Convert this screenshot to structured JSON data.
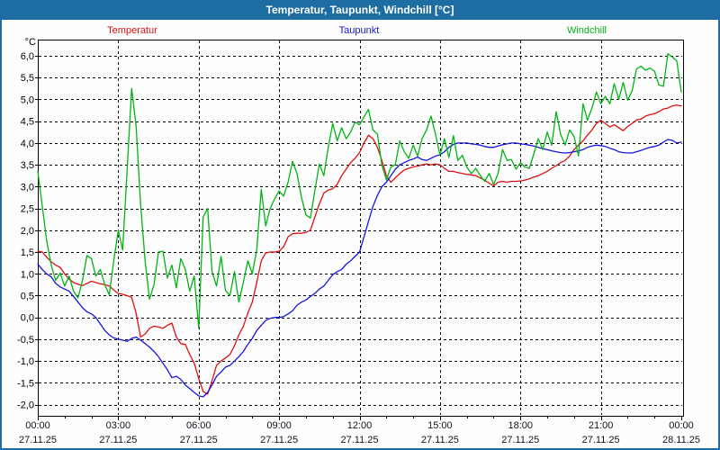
{
  "window": {
    "title": "Temperatur, Taupunkt, Windchill [°C]"
  },
  "chart_data": {
    "type": "line",
    "title": "Temperatur, Taupunkt, Windchill [°C]",
    "unit_label": "°C",
    "grid": "dashed-black",
    "legend_position": "top",
    "x_axis": {
      "range_hours": [
        0,
        24
      ],
      "major_tick_hours": 3,
      "minor_tick_hours": 1,
      "ticks": [
        {
          "hour": 0,
          "time": "00:00",
          "date": "27.11.25"
        },
        {
          "hour": 3,
          "time": "03:00",
          "date": "27.11.25"
        },
        {
          "hour": 6,
          "time": "06:00",
          "date": "27.11.25"
        },
        {
          "hour": 9,
          "time": "09:00",
          "date": "27.11.25"
        },
        {
          "hour": 12,
          "time": "12:00",
          "date": "27.11.25"
        },
        {
          "hour": 15,
          "time": "15:00",
          "date": "27.11.25"
        },
        {
          "hour": 18,
          "time": "18:00",
          "date": "27.11.25"
        },
        {
          "hour": 21,
          "time": "21:00",
          "date": "27.11.25"
        },
        {
          "hour": 24,
          "time": "00:00",
          "date": "28.11.25"
        }
      ]
    },
    "y_axis": {
      "min": -2.0,
      "max": 6.0,
      "step": 0.5,
      "tick_labels": [
        "6,0",
        "5,5",
        "5,0",
        "4,5",
        "4,0",
        "3,5",
        "3,0",
        "2,5",
        "2,0",
        "1,5",
        "1,0",
        "0,5",
        "0,0",
        "-0,5",
        "-1,0",
        "-1,5",
        "-2,0"
      ]
    },
    "sample_interval_minutes": 10,
    "series": [
      {
        "name": "Temperatur",
        "color": "#e01010",
        "values": [
          1.52,
          1.5,
          1.38,
          1.28,
          1.2,
          1.15,
          1.0,
          0.88,
          0.8,
          0.76,
          0.73,
          0.78,
          0.83,
          0.8,
          0.77,
          0.75,
          0.72,
          0.63,
          0.55,
          0.53,
          0.5,
          0.46,
          0.1,
          -0.45,
          -0.38,
          -0.25,
          -0.2,
          -0.22,
          -0.25,
          -0.18,
          -0.13,
          -0.45,
          -0.6,
          -0.62,
          -0.85,
          -1.05,
          -1.4,
          -1.7,
          -1.76,
          -1.45,
          -1.1,
          -1.0,
          -0.93,
          -0.85,
          -0.65,
          -0.4,
          -0.2,
          0.1,
          0.35,
          0.8,
          1.3,
          1.48,
          1.5,
          1.5,
          1.52,
          1.62,
          1.85,
          1.92,
          1.93,
          1.93,
          1.95,
          2.0,
          2.3,
          2.6,
          2.85,
          2.92,
          2.95,
          3.05,
          3.25,
          3.4,
          3.55,
          3.65,
          3.78,
          4.0,
          4.18,
          4.1,
          3.9,
          3.6,
          3.25,
          3.1,
          3.2,
          3.3,
          3.38,
          3.42,
          3.45,
          3.47,
          3.5,
          3.52,
          3.5,
          3.52,
          3.5,
          3.42,
          3.35,
          3.35,
          3.32,
          3.3,
          3.28,
          3.27,
          3.25,
          3.2,
          3.15,
          3.08,
          3.02,
          3.1,
          3.12,
          3.1,
          3.12,
          3.12,
          3.13,
          3.15,
          3.18,
          3.22,
          3.25,
          3.3,
          3.35,
          3.42,
          3.48,
          3.55,
          3.6,
          3.7,
          3.85,
          3.95,
          4.05,
          4.18,
          4.3,
          4.45,
          4.52,
          4.45,
          4.37,
          4.42,
          4.35,
          4.28,
          4.38,
          4.45,
          4.53,
          4.55,
          4.62,
          4.65,
          4.67,
          4.72,
          4.78,
          4.8,
          4.85,
          4.87,
          4.85
        ]
      },
      {
        "name": "Taupunkt",
        "color": "#1515dd",
        "values": [
          1.22,
          1.1,
          1.0,
          0.93,
          0.78,
          0.7,
          0.65,
          0.6,
          0.48,
          0.35,
          0.22,
          0.13,
          0.08,
          0.0,
          -0.15,
          -0.3,
          -0.4,
          -0.47,
          -0.5,
          -0.52,
          -0.55,
          -0.48,
          -0.45,
          -0.52,
          -0.6,
          -0.68,
          -0.78,
          -0.9,
          -1.05,
          -1.2,
          -1.38,
          -1.35,
          -1.42,
          -1.55,
          -1.63,
          -1.72,
          -1.8,
          -1.82,
          -1.72,
          -1.55,
          -1.35,
          -1.25,
          -1.14,
          -1.1,
          -1.0,
          -0.9,
          -0.78,
          -0.62,
          -0.48,
          -0.3,
          -0.18,
          -0.07,
          -0.02,
          0.0,
          0.0,
          0.02,
          0.08,
          0.15,
          0.28,
          0.35,
          0.4,
          0.48,
          0.55,
          0.65,
          0.72,
          0.85,
          0.98,
          1.05,
          1.1,
          1.22,
          1.3,
          1.4,
          1.5,
          1.85,
          2.2,
          2.55,
          2.8,
          3.0,
          3.1,
          3.25,
          3.4,
          3.5,
          3.55,
          3.6,
          3.63,
          3.68,
          3.62,
          3.6,
          3.65,
          3.7,
          3.73,
          3.8,
          3.9,
          3.97,
          4.0,
          4.0,
          4.0,
          3.98,
          3.97,
          3.95,
          3.92,
          3.9,
          3.9,
          3.93,
          3.96,
          3.98,
          4.0,
          4.0,
          3.98,
          3.97,
          3.95,
          3.93,
          3.9,
          3.87,
          3.85,
          3.82,
          3.8,
          3.78,
          3.77,
          3.78,
          3.8,
          3.82,
          3.85,
          3.9,
          3.93,
          3.95,
          3.94,
          3.92,
          3.88,
          3.85,
          3.8,
          3.78,
          3.77,
          3.77,
          3.8,
          3.83,
          3.87,
          3.9,
          3.92,
          3.95,
          4.02,
          4.08,
          4.06,
          4.0,
          4.02
        ]
      },
      {
        "name": "Windchill",
        "color": "#00b414",
        "values": [
          3.35,
          2.55,
          1.75,
          1.2,
          0.85,
          1.02,
          0.72,
          0.95,
          0.6,
          0.45,
          0.85,
          1.42,
          1.35,
          0.95,
          1.1,
          0.75,
          0.52,
          1.3,
          2.0,
          1.55,
          3.4,
          5.25,
          4.4,
          2.6,
          1.3,
          0.42,
          0.75,
          1.5,
          1.52,
          0.9,
          1.2,
          0.68,
          1.35,
          1.1,
          0.6,
          0.95,
          -0.25,
          2.3,
          2.5,
          1.05,
          0.72,
          1.4,
          0.62,
          0.5,
          1.05,
          0.35,
          0.8,
          1.3,
          1.0,
          1.55,
          2.94,
          2.1,
          2.5,
          2.72,
          2.9,
          2.78,
          3.1,
          3.58,
          3.3,
          2.75,
          2.35,
          2.28,
          2.9,
          3.52,
          3.25,
          3.9,
          4.45,
          4.05,
          4.35,
          4.1,
          4.25,
          4.48,
          4.42,
          4.6,
          4.77,
          4.3,
          4.2,
          3.5,
          3.15,
          3.45,
          3.5,
          4.05,
          3.8,
          3.65,
          3.95,
          3.7,
          4.1,
          4.3,
          4.62,
          4.2,
          3.72,
          4.1,
          3.67,
          4.17,
          3.6,
          3.72,
          3.45,
          3.3,
          3.42,
          3.25,
          3.12,
          3.3,
          3.05,
          3.3,
          3.85,
          3.6,
          3.62,
          3.4,
          3.55,
          3.45,
          3.42,
          3.75,
          4.1,
          3.85,
          4.25,
          3.95,
          4.72,
          4.2,
          3.95,
          4.3,
          4.15,
          3.7,
          4.9,
          4.52,
          4.8,
          5.17,
          4.9,
          5.07,
          4.9,
          5.36,
          5.0,
          5.39,
          4.98,
          5.2,
          5.7,
          5.76,
          5.67,
          5.72,
          5.65,
          5.33,
          5.3,
          6.05,
          5.97,
          5.88,
          5.17
        ]
      }
    ]
  }
}
